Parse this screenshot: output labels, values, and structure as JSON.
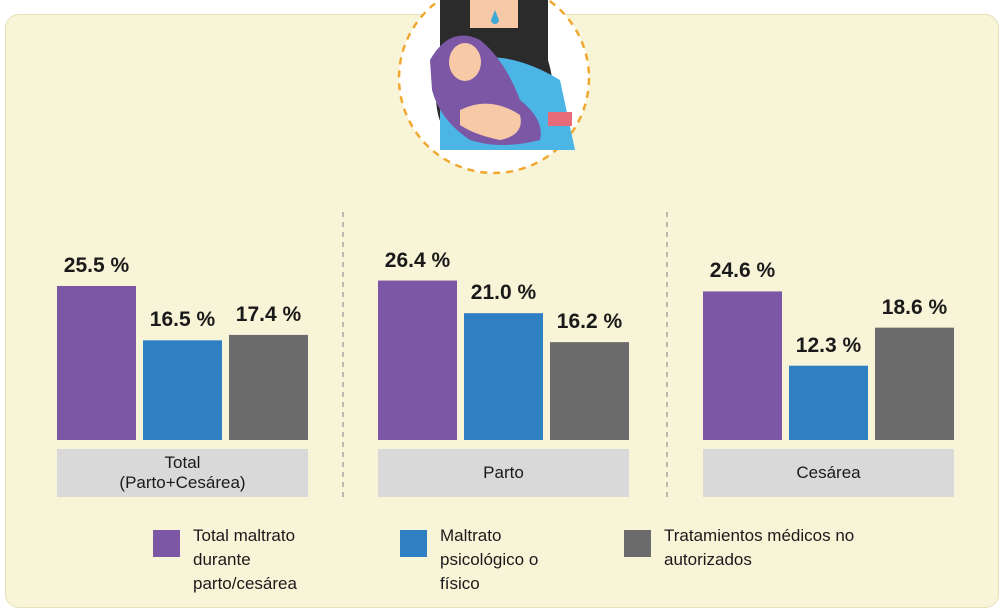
{
  "chart_data": {
    "type": "bar",
    "categories": [
      "Total (Parto+Cesárea)",
      "Parto",
      "Cesárea"
    ],
    "series": [
      {
        "name": "Total maltrato durante parto/cesárea",
        "color": "#7b57a6",
        "values": [
          25.5,
          26.4,
          24.6
        ],
        "value_labels": [
          "25.5 %",
          "26.4 %",
          "24.6 %"
        ]
      },
      {
        "name": "Maltrato psicológico o físico",
        "color": "#2f80c2",
        "values": [
          16.5,
          21.0,
          12.3
        ],
        "value_labels": [
          "16.5 %",
          "21.0 %",
          "12.3 %"
        ]
      },
      {
        "name": "Tratamientos médicos no autorizados",
        "color": "#6b6b6b",
        "values": [
          17.4,
          16.2,
          18.6
        ],
        "value_labels": [
          "17.4 %",
          "16.2 %",
          "18.6 %"
        ]
      }
    ]
  }
}
